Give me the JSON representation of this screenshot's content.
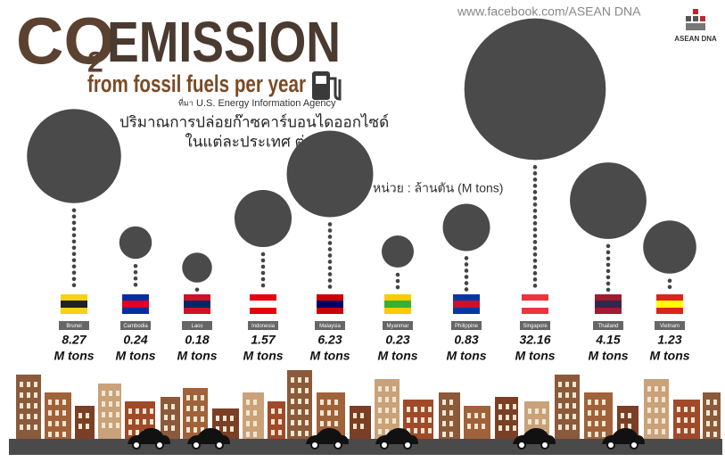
{
  "chart_data": {
    "type": "bubble",
    "title_main": "CO",
    "title_sub": "2",
    "title_rest": "EMISSION",
    "subtitle": "from fossil fuels per year",
    "source_prefix": "ที่มา",
    "source": "U.S. Energy Information Agency",
    "description": [
      "ปริมาณการปล่อยก๊าซคาร์บอนไดออกไซด์",
      "ในแต่ละประเทศ ต่อปี"
    ],
    "unit_note": "หน่วย : ล้านตัน (M tons)",
    "website": "www.facebook.com/ASEAN DNA",
    "logo": "ASEAN DNA",
    "unit_label": "M tons",
    "categories": [
      "Brunei",
      "Cambodia",
      "Laos",
      "Indonesia",
      "Malaysia",
      "Myanmar",
      "Philippine",
      "Singapore",
      "Thailand",
      "Vietnam"
    ],
    "values": [
      8.27,
      0.24,
      0.18,
      1.57,
      6.23,
      0.23,
      0.83,
      32.16,
      4.15,
      1.23
    ],
    "color": "#4a4a4a"
  }
}
